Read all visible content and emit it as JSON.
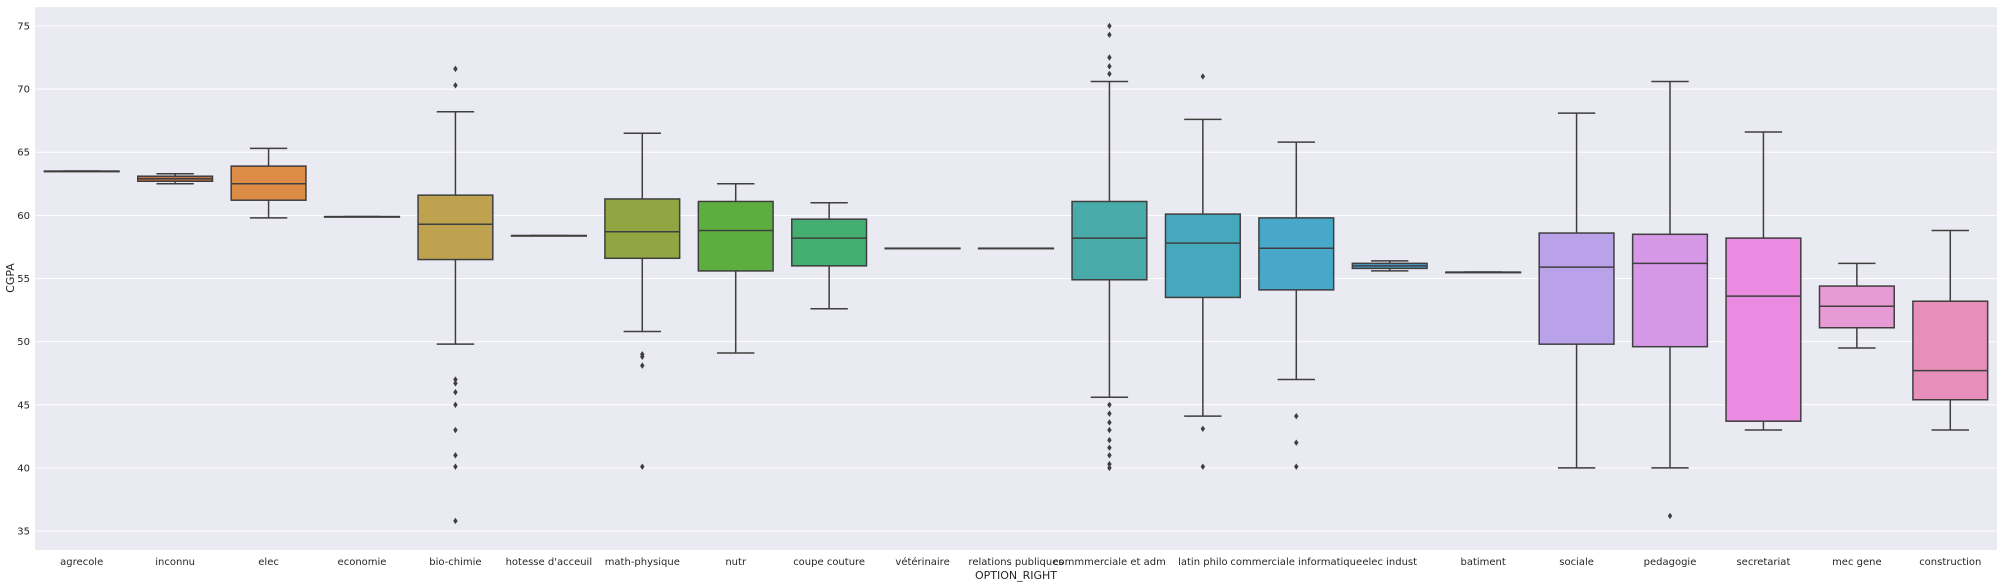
{
  "chart_data": {
    "type": "box",
    "xlabel": "OPTION_RIGHT",
    "ylabel": "CGPA",
    "ylim": [
      33.5,
      76.5
    ],
    "yticks": [
      35,
      40,
      45,
      50,
      55,
      60,
      65,
      70,
      75
    ],
    "grid": true,
    "categories": [
      {
        "label": "agrecole",
        "color": "#e1812c",
        "q1": 63.5,
        "median": 63.5,
        "q3": 63.5,
        "whislo": 63.5,
        "whishi": 63.5,
        "fliers": []
      },
      {
        "label": "inconnu",
        "color": "#c5754b",
        "q1": 62.7,
        "median": 62.9,
        "q3": 63.1,
        "whislo": 62.5,
        "whishi": 63.3,
        "fliers": []
      },
      {
        "label": "elec",
        "color": "#dd8c48",
        "q1": 61.2,
        "median": 62.5,
        "q3": 63.9,
        "whislo": 59.8,
        "whishi": 65.3,
        "fliers": []
      },
      {
        "label": "economie",
        "color": "#cba048",
        "q1": 59.9,
        "median": 59.9,
        "q3": 59.9,
        "whislo": 59.9,
        "whishi": 59.9,
        "fliers": []
      },
      {
        "label": "bio-chimie",
        "color": "#bfa250",
        "q1": 56.5,
        "median": 59.3,
        "q3": 61.6,
        "whislo": 49.8,
        "whishi": 68.2,
        "fliers": [
          70.3,
          71.6,
          47.0,
          46.7,
          46.0,
          45.0,
          43.0,
          41.0,
          40.1,
          35.8
        ]
      },
      {
        "label": "hotesse d'acceuil",
        "color": "#b8a55a",
        "q1": 58.4,
        "median": 58.4,
        "q3": 58.4,
        "whislo": 58.4,
        "whishi": 58.4,
        "fliers": []
      },
      {
        "label": "math-physique",
        "color": "#93a543",
        "q1": 56.6,
        "median": 58.7,
        "q3": 61.3,
        "whislo": 50.8,
        "whishi": 66.5,
        "fliers": [
          49.0,
          48.8,
          48.1,
          40.1
        ]
      },
      {
        "label": "nutr",
        "color": "#5caf3e",
        "q1": 55.6,
        "median": 58.8,
        "q3": 61.1,
        "whislo": 49.1,
        "whishi": 62.5,
        "fliers": []
      },
      {
        "label": "coupe couture",
        "color": "#44ae70",
        "q1": 56.0,
        "median": 58.2,
        "q3": 59.7,
        "whislo": 52.6,
        "whishi": 61.0,
        "fliers": []
      },
      {
        "label": "vétérinaire",
        "color": "#45ad8c",
        "q1": 57.4,
        "median": 57.4,
        "q3": 57.4,
        "whislo": 57.4,
        "whishi": 57.4,
        "fliers": []
      },
      {
        "label": "relations publiques",
        "color": "#46ab9c",
        "q1": 57.4,
        "median": 57.4,
        "q3": 57.4,
        "whislo": 57.4,
        "whishi": 57.4,
        "fliers": []
      },
      {
        "label": "commmerciale et adm",
        "color": "#48aaa9",
        "q1": 54.9,
        "median": 58.2,
        "q3": 61.1,
        "whislo": 45.6,
        "whishi": 70.6,
        "fliers": [
          71.2,
          71.8,
          72.5,
          74.3,
          75.0,
          45.0,
          44.3,
          43.6,
          43.0,
          42.2,
          41.6,
          41.0,
          40.3,
          40.0
        ]
      },
      {
        "label": "latin philo",
        "color": "#45a8bc",
        "q1": 53.5,
        "median": 57.8,
        "q3": 60.1,
        "whislo": 44.1,
        "whishi": 67.6,
        "fliers": [
          71.0,
          43.1,
          40.1
        ]
      },
      {
        "label": "commerciale informatique",
        "color": "#48a8c9",
        "q1": 54.1,
        "median": 57.4,
        "q3": 59.8,
        "whislo": 47.0,
        "whishi": 65.8,
        "fliers": [
          44.1,
          42.0,
          40.1
        ]
      },
      {
        "label": "elec indust",
        "color": "#4e9ccd",
        "q1": 55.8,
        "median": 56.0,
        "q3": 56.2,
        "whislo": 55.6,
        "whishi": 56.4,
        "fliers": []
      },
      {
        "label": "batiment",
        "color": "#7da0d6",
        "q1": 55.5,
        "median": 55.5,
        "q3": 55.5,
        "whislo": 55.5,
        "whishi": 55.5,
        "fliers": []
      },
      {
        "label": "sociale",
        "color": "#b9a2ea",
        "q1": 49.8,
        "median": 55.9,
        "q3": 58.6,
        "whislo": 40.0,
        "whishi": 68.1,
        "fliers": []
      },
      {
        "label": "pedagogie",
        "color": "#d697e6",
        "q1": 49.6,
        "median": 56.2,
        "q3": 58.5,
        "whislo": 40.0,
        "whishi": 70.6,
        "fliers": [
          36.2
        ]
      },
      {
        "label": "secretariat",
        "color": "#ea8ae1",
        "q1": 43.7,
        "median": 53.6,
        "q3": 58.2,
        "whislo": 43.0,
        "whishi": 66.6,
        "fliers": []
      },
      {
        "label": "mec gene",
        "color": "#e79bd4",
        "q1": 51.1,
        "median": 52.8,
        "q3": 54.4,
        "whislo": 49.5,
        "whishi": 56.2,
        "fliers": []
      },
      {
        "label": "construction",
        "color": "#e68fba",
        "q1": 45.4,
        "median": 47.7,
        "q3": 53.2,
        "whislo": 43.0,
        "whishi": 58.8,
        "fliers": []
      }
    ]
  },
  "style": {
    "plot_background": "#eaeaf2",
    "grid_color": "#ffffff",
    "line_color": "#3f3f3f"
  }
}
